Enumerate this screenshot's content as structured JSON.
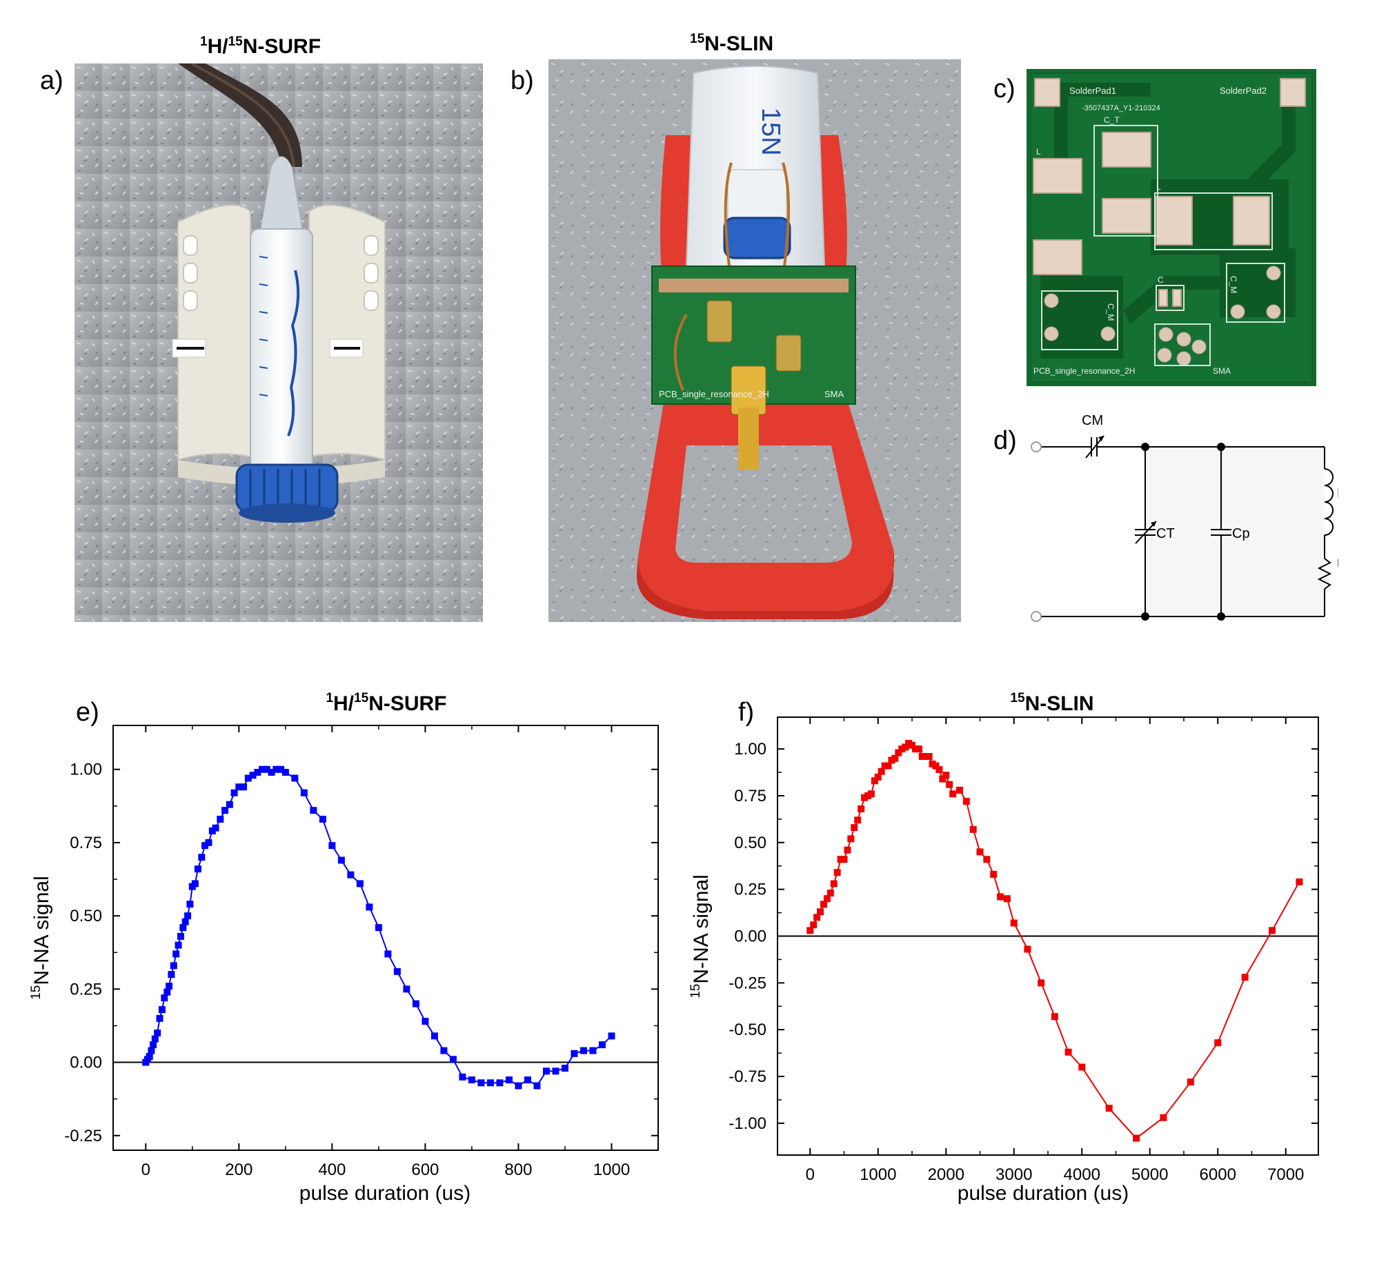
{
  "panels": {
    "a": {
      "letter": "a)",
      "title_sup1": "1",
      "title_mid": "H/",
      "title_sup2": "15",
      "title_rest": "N-SURF"
    },
    "b": {
      "letter": "b)",
      "title_sup": "15",
      "title_rest": "N-SLIN",
      "tube_label": "15N",
      "pcb_label": "PCB_single_resonance_2H",
      "sma_label": "SMA"
    },
    "c": {
      "letter": "c)",
      "pcb_texts": {
        "pad1": "SolderPad1",
        "pad2": "SolderPad2",
        "code": "-3507437A_Y1-210324",
        "ct": "C_T",
        "l1": "L",
        "l2": "L",
        "cm1": "C_M",
        "cm2": "C_M",
        "c": "C",
        "pcb_name": "PCB_single_resonance_2H",
        "sma": "SMA"
      }
    },
    "d": {
      "letter": "d)",
      "labels": {
        "cm": "CM",
        "ct": "CT",
        "cp": "Cp",
        "l": "L",
        "res": "res"
      }
    }
  },
  "chart_data": [
    {
      "panel_letter": "e)",
      "type": "line",
      "title_sup1": "1",
      "title_mid": "H/",
      "title_sup2": "15",
      "title_rest": "N-SURF",
      "xlabel": "pulse duration (us)",
      "ylabel_sup": "15",
      "ylabel_rest": "N-NA signal",
      "xlim": [
        -70,
        1100
      ],
      "ylim": [
        -0.3,
        1.15
      ],
      "xticks": [
        "0",
        "200",
        "400",
        "600",
        "800",
        "1000"
      ],
      "xtick_values": [
        0,
        200,
        400,
        600,
        800,
        1000
      ],
      "yticks": [
        "-0.25",
        "0.00",
        "0.25",
        "0.50",
        "0.75",
        "1.00"
      ],
      "ytick_values": [
        -0.25,
        0,
        0.25,
        0.5,
        0.75,
        1.0
      ],
      "color": "#0000ff",
      "series": [
        {
          "name": "1H/15N-SURF",
          "x": [
            0,
            4,
            8,
            12,
            16,
            20,
            25,
            30,
            35,
            40,
            46,
            50,
            55,
            60,
            65,
            70,
            75,
            80,
            85,
            90,
            95,
            100,
            106,
            112,
            120,
            127,
            135,
            143,
            150,
            160,
            170,
            180,
            190,
            200,
            210,
            220,
            230,
            240,
            250,
            260,
            270,
            280,
            290,
            300,
            320,
            340,
            360,
            380,
            400,
            420,
            440,
            460,
            480,
            500,
            520,
            540,
            560,
            580,
            600,
            620,
            640,
            660,
            680,
            700,
            720,
            740,
            760,
            780,
            800,
            820,
            840,
            860,
            880,
            900,
            920,
            940,
            960,
            980,
            1000
          ],
          "y": [
            0.0,
            0.01,
            0.02,
            0.04,
            0.06,
            0.08,
            0.1,
            0.15,
            0.18,
            0.22,
            0.24,
            0.26,
            0.3,
            0.33,
            0.37,
            0.4,
            0.43,
            0.46,
            0.48,
            0.5,
            0.54,
            0.6,
            0.61,
            0.66,
            0.7,
            0.74,
            0.75,
            0.79,
            0.8,
            0.83,
            0.86,
            0.88,
            0.92,
            0.94,
            0.94,
            0.97,
            0.98,
            0.99,
            1.0,
            1.0,
            0.99,
            1.0,
            1.0,
            0.99,
            0.97,
            0.92,
            0.86,
            0.83,
            0.74,
            0.69,
            0.64,
            0.61,
            0.53,
            0.46,
            0.37,
            0.31,
            0.25,
            0.2,
            0.14,
            0.09,
            0.04,
            0.01,
            -0.05,
            -0.06,
            -0.07,
            -0.07,
            -0.07,
            -0.06,
            -0.08,
            -0.06,
            -0.08,
            -0.03,
            -0.03,
            -0.02,
            0.03,
            0.04,
            0.04,
            0.06,
            0.09
          ]
        }
      ]
    },
    {
      "panel_letter": "f)",
      "type": "line",
      "title_sup": "15",
      "title_rest": "N-SLIN",
      "xlabel": "pulse duration (us)",
      "ylabel_sup": "15",
      "ylabel_rest": "N-NA signal",
      "xlim": [
        -480,
        7480
      ],
      "ylim": [
        -1.17,
        1.17
      ],
      "xticks": [
        "0",
        "1000",
        "2000",
        "3000",
        "4000",
        "5000",
        "6000",
        "7000"
      ],
      "xtick_values": [
        0,
        1000,
        2000,
        3000,
        4000,
        5000,
        6000,
        7000
      ],
      "yticks": [
        "-1.00",
        "-0.75",
        "-0.50",
        "-0.25",
        "0.00",
        "0.25",
        "0.50",
        "0.75",
        "1.00"
      ],
      "ytick_values": [
        -1.0,
        -0.75,
        -0.5,
        -0.25,
        0,
        0.25,
        0.5,
        0.75,
        1.0
      ],
      "color": "#ee0000",
      "series": [
        {
          "name": "15N-SLIN",
          "x": [
            0,
            50,
            100,
            150,
            200,
            250,
            300,
            350,
            400,
            450,
            500,
            550,
            600,
            650,
            700,
            750,
            800,
            850,
            900,
            950,
            1000,
            1050,
            1100,
            1150,
            1200,
            1250,
            1300,
            1350,
            1400,
            1450,
            1500,
            1550,
            1600,
            1650,
            1700,
            1750,
            1800,
            1850,
            1900,
            1950,
            2000,
            2050,
            2100,
            2200,
            2300,
            2400,
            2500,
            2600,
            2700,
            2800,
            2900,
            3000,
            3200,
            3400,
            3600,
            3800,
            4000,
            4400,
            4800,
            5200,
            5600,
            6000,
            6400,
            6800,
            7200
          ],
          "y": [
            0.03,
            0.06,
            0.1,
            0.13,
            0.17,
            0.2,
            0.23,
            0.28,
            0.34,
            0.41,
            0.41,
            0.46,
            0.52,
            0.58,
            0.62,
            0.68,
            0.74,
            0.75,
            0.76,
            0.83,
            0.85,
            0.88,
            0.91,
            0.91,
            0.94,
            0.95,
            0.98,
            1.0,
            1.01,
            1.03,
            1.02,
            1.0,
            1.0,
            0.96,
            0.96,
            0.96,
            0.92,
            0.91,
            0.89,
            0.84,
            0.86,
            0.81,
            0.76,
            0.78,
            0.72,
            0.57,
            0.45,
            0.41,
            0.33,
            0.21,
            0.2,
            0.07,
            -0.07,
            -0.25,
            -0.43,
            -0.62,
            -0.7,
            -0.92,
            -1.08,
            -0.97,
            -0.78,
            -0.57,
            -0.22,
            0.03,
            0.29
          ]
        }
      ]
    }
  ]
}
